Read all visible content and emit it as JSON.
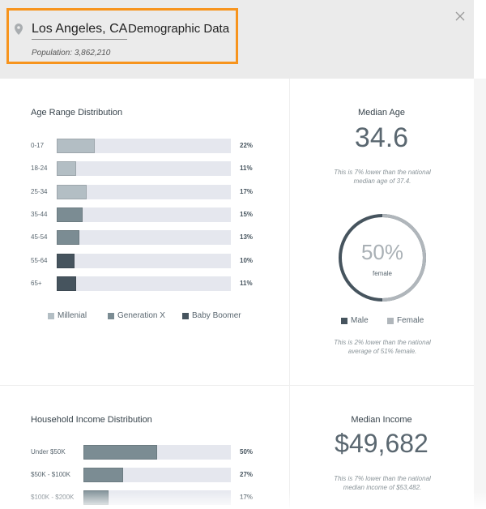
{
  "header": {
    "location": "Los Angeles, CA",
    "title": "Demographic Data",
    "population": "Population: 3,862,210"
  },
  "age_distribution": {
    "title": "Age Range Distribution",
    "categories": [
      "0-17",
      "18-24",
      "25-34",
      "35-44",
      "45-54",
      "55-64",
      "65+"
    ],
    "values": [
      22,
      11,
      17,
      15,
      13,
      10,
      11
    ],
    "value_labels": [
      "22%",
      "11%",
      "17%",
      "15%",
      "13%",
      "10%",
      "11%"
    ],
    "bar_colors": [
      "#b3bec4",
      "#b3bec4",
      "#b3bec4",
      "#7b8c93",
      "#7b8c93",
      "#46545e",
      "#46545e"
    ],
    "xlim": [
      0,
      100
    ],
    "legend": [
      {
        "name": "Millenial",
        "color": "#b3bec4"
      },
      {
        "name": "Generation X",
        "color": "#7b8c93"
      },
      {
        "name": "Baby Boomer",
        "color": "#46545e"
      }
    ]
  },
  "median_age": {
    "title": "Median Age",
    "value": "34.6",
    "note": "This is 7% lower than the national median age of 37.4."
  },
  "gender": {
    "value": 50,
    "value_label": "50%",
    "caption": "female",
    "legend": [
      {
        "name": "Male",
        "color": "#46545e"
      },
      {
        "name": "Female",
        "color": "#b0b6bb"
      }
    ],
    "note": "This is 2% lower than the national average of 51% female."
  },
  "income_distribution": {
    "title": "Household Income Distribution",
    "categories": [
      "Under $50K",
      "$50K - $100K",
      "$100K - $200K"
    ],
    "values": [
      50,
      27,
      17
    ],
    "value_labels": [
      "50%",
      "27%",
      "17%"
    ],
    "bar_color": "#7b8c93",
    "xlim": [
      0,
      100
    ]
  },
  "median_income": {
    "title": "Median Income",
    "value": "$49,682",
    "note": "This is 7% lower than the national median income of $53,482."
  }
}
